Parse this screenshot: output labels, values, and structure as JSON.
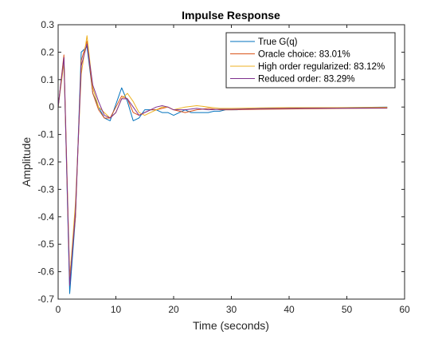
{
  "chart_data": {
    "type": "line",
    "title": "Impulse Response",
    "xlabel": "Time (seconds)",
    "ylabel": "Amplitude",
    "xlim": [
      0,
      60
    ],
    "ylim": [
      -0.7,
      0.3
    ],
    "xticks": [
      0,
      10,
      20,
      30,
      40,
      50,
      60
    ],
    "yticks": [
      -0.7,
      -0.6,
      -0.5,
      -0.4,
      -0.3,
      -0.2,
      -0.1,
      0,
      0.1,
      0.2,
      0.3
    ],
    "xtick_labels": [
      "0",
      "10",
      "20",
      "30",
      "40",
      "50",
      "60"
    ],
    "ytick_labels": [
      "-0.7",
      "-0.6",
      "-0.5",
      "-0.4",
      "-0.3",
      "-0.2",
      "-0.1",
      "0",
      "0.1",
      "0.2",
      "0.3"
    ],
    "grid": false,
    "legend_position": "top-right",
    "series": [
      {
        "name": "True G(q)",
        "color": "#0072BD",
        "x": [
          0,
          1,
          2,
          3,
          4,
          5,
          6,
          7,
          8,
          9,
          10,
          11,
          12,
          13,
          14,
          15,
          16,
          17,
          18,
          19,
          20,
          21,
          22,
          23,
          24,
          25,
          26,
          27,
          28,
          29,
          30,
          31,
          32,
          35,
          40,
          45,
          50,
          57
        ],
        "y": [
          0,
          0.18,
          -0.68,
          -0.4,
          0.2,
          0.22,
          0.05,
          0.0,
          -0.04,
          -0.05,
          0.01,
          0.07,
          0.02,
          -0.05,
          -0.04,
          -0.01,
          -0.01,
          -0.01,
          -0.02,
          -0.02,
          -0.03,
          -0.02,
          -0.01,
          -0.02,
          -0.02,
          -0.02,
          -0.02,
          -0.015,
          -0.015,
          -0.01,
          -0.01,
          -0.01,
          -0.008,
          -0.006,
          -0.004,
          -0.003,
          -0.002,
          0.0
        ]
      },
      {
        "name": "Oracle choice: 83.01%",
        "color": "#D95319",
        "x": [
          0,
          1,
          2,
          3,
          4,
          5,
          6,
          7,
          8,
          9,
          10,
          11,
          12,
          13,
          14,
          15,
          16,
          17,
          18,
          19,
          20,
          22,
          24,
          26,
          28,
          30,
          35,
          40,
          45,
          50,
          57
        ],
        "y": [
          0,
          0.19,
          -0.62,
          -0.4,
          0.17,
          0.24,
          0.05,
          -0.01,
          -0.04,
          -0.04,
          0.0,
          0.04,
          0.03,
          -0.02,
          -0.03,
          -0.02,
          -0.01,
          -0.01,
          -0.005,
          0.0,
          -0.01,
          -0.02,
          -0.01,
          -0.005,
          -0.01,
          -0.01,
          -0.008,
          -0.007,
          -0.006,
          -0.005,
          -0.004
        ]
      },
      {
        "name": "High order regularized: 83.12%",
        "color": "#EDB120",
        "x": [
          0,
          1,
          2,
          3,
          4,
          5,
          6,
          7,
          8,
          9,
          10,
          11,
          12,
          13,
          14,
          15,
          16,
          17,
          18,
          19,
          20,
          22,
          24,
          26,
          28,
          30,
          35,
          40,
          45,
          50,
          57
        ],
        "y": [
          0,
          0.16,
          -0.63,
          -0.35,
          0.12,
          0.26,
          0.07,
          0.0,
          -0.02,
          -0.04,
          -0.02,
          0.03,
          0.05,
          0.02,
          -0.02,
          -0.03,
          -0.02,
          -0.01,
          0.0,
          0.0,
          -0.01,
          0.0,
          0.005,
          0.0,
          -0.005,
          -0.005,
          -0.003,
          -0.002,
          -0.002,
          -0.002,
          -0.001
        ]
      },
      {
        "name": "Reduced order: 83.29%",
        "color": "#7E2F8E",
        "x": [
          0,
          1,
          2,
          3,
          4,
          5,
          6,
          7,
          8,
          9,
          10,
          11,
          12,
          13,
          14,
          15,
          16,
          17,
          18,
          19,
          20,
          22,
          24,
          26,
          28,
          30,
          35,
          40,
          45,
          50,
          57
        ],
        "y": [
          0,
          0.18,
          -0.65,
          -0.38,
          0.15,
          0.23,
          0.08,
          0.02,
          -0.03,
          -0.04,
          -0.02,
          0.03,
          0.03,
          0.0,
          -0.03,
          -0.02,
          -0.01,
          0.0,
          0.005,
          0.0,
          -0.01,
          -0.01,
          -0.005,
          -0.01,
          -0.008,
          -0.008,
          -0.006,
          -0.005,
          -0.004,
          -0.004,
          -0.003
        ]
      }
    ]
  }
}
